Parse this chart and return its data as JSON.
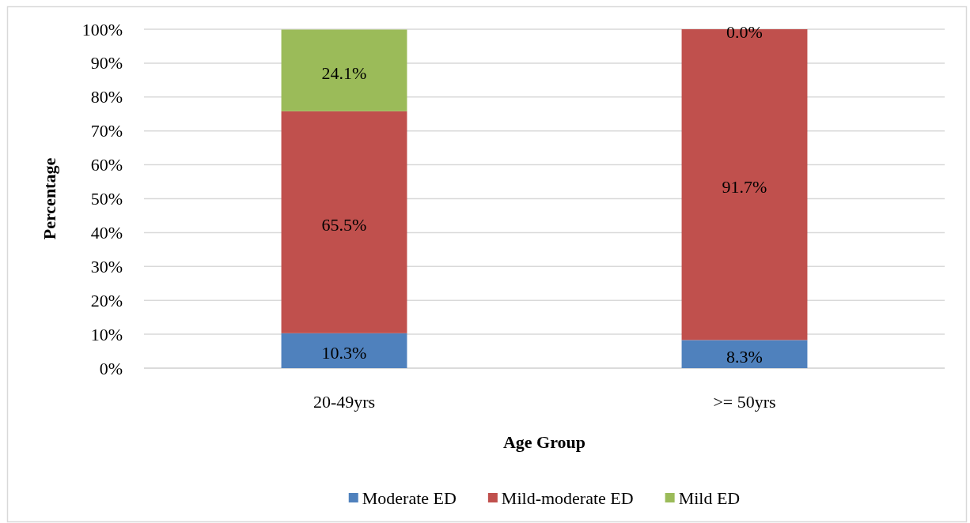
{
  "chart_data": {
    "type": "bar",
    "stacked": true,
    "xlabel": "Age Group",
    "ylabel": "Percentage",
    "categories": [
      "20-49yrs",
      ">= 50yrs"
    ],
    "series": [
      {
        "name": "Moderate ED",
        "color": "#4f81bd",
        "values": [
          10.3,
          8.3
        ],
        "value_labels": [
          "10.3%",
          "8.3%"
        ]
      },
      {
        "name": "Mild-moderate ED",
        "color": "#c0504d",
        "values": [
          65.5,
          91.7
        ],
        "value_labels": [
          "65.5%",
          "91.7%"
        ]
      },
      {
        "name": "Mild ED",
        "color": "#9bbb59",
        "values": [
          24.1,
          0.0
        ],
        "value_labels": [
          "24.1%",
          "0.0%"
        ]
      }
    ],
    "ylim": [
      0,
      100
    ],
    "yticks": [
      {
        "value": 0,
        "label": "0%"
      },
      {
        "value": 10,
        "label": "10%"
      },
      {
        "value": 20,
        "label": "20%"
      },
      {
        "value": 30,
        "label": "30%"
      },
      {
        "value": 40,
        "label": "40%"
      },
      {
        "value": 50,
        "label": "50%"
      },
      {
        "value": 60,
        "label": "60%"
      },
      {
        "value": 70,
        "label": "70%"
      },
      {
        "value": 80,
        "label": "80%"
      },
      {
        "value": 90,
        "label": "90%"
      },
      {
        "value": 100,
        "label": "100%"
      }
    ],
    "grid": "y",
    "legend": "bottom"
  }
}
